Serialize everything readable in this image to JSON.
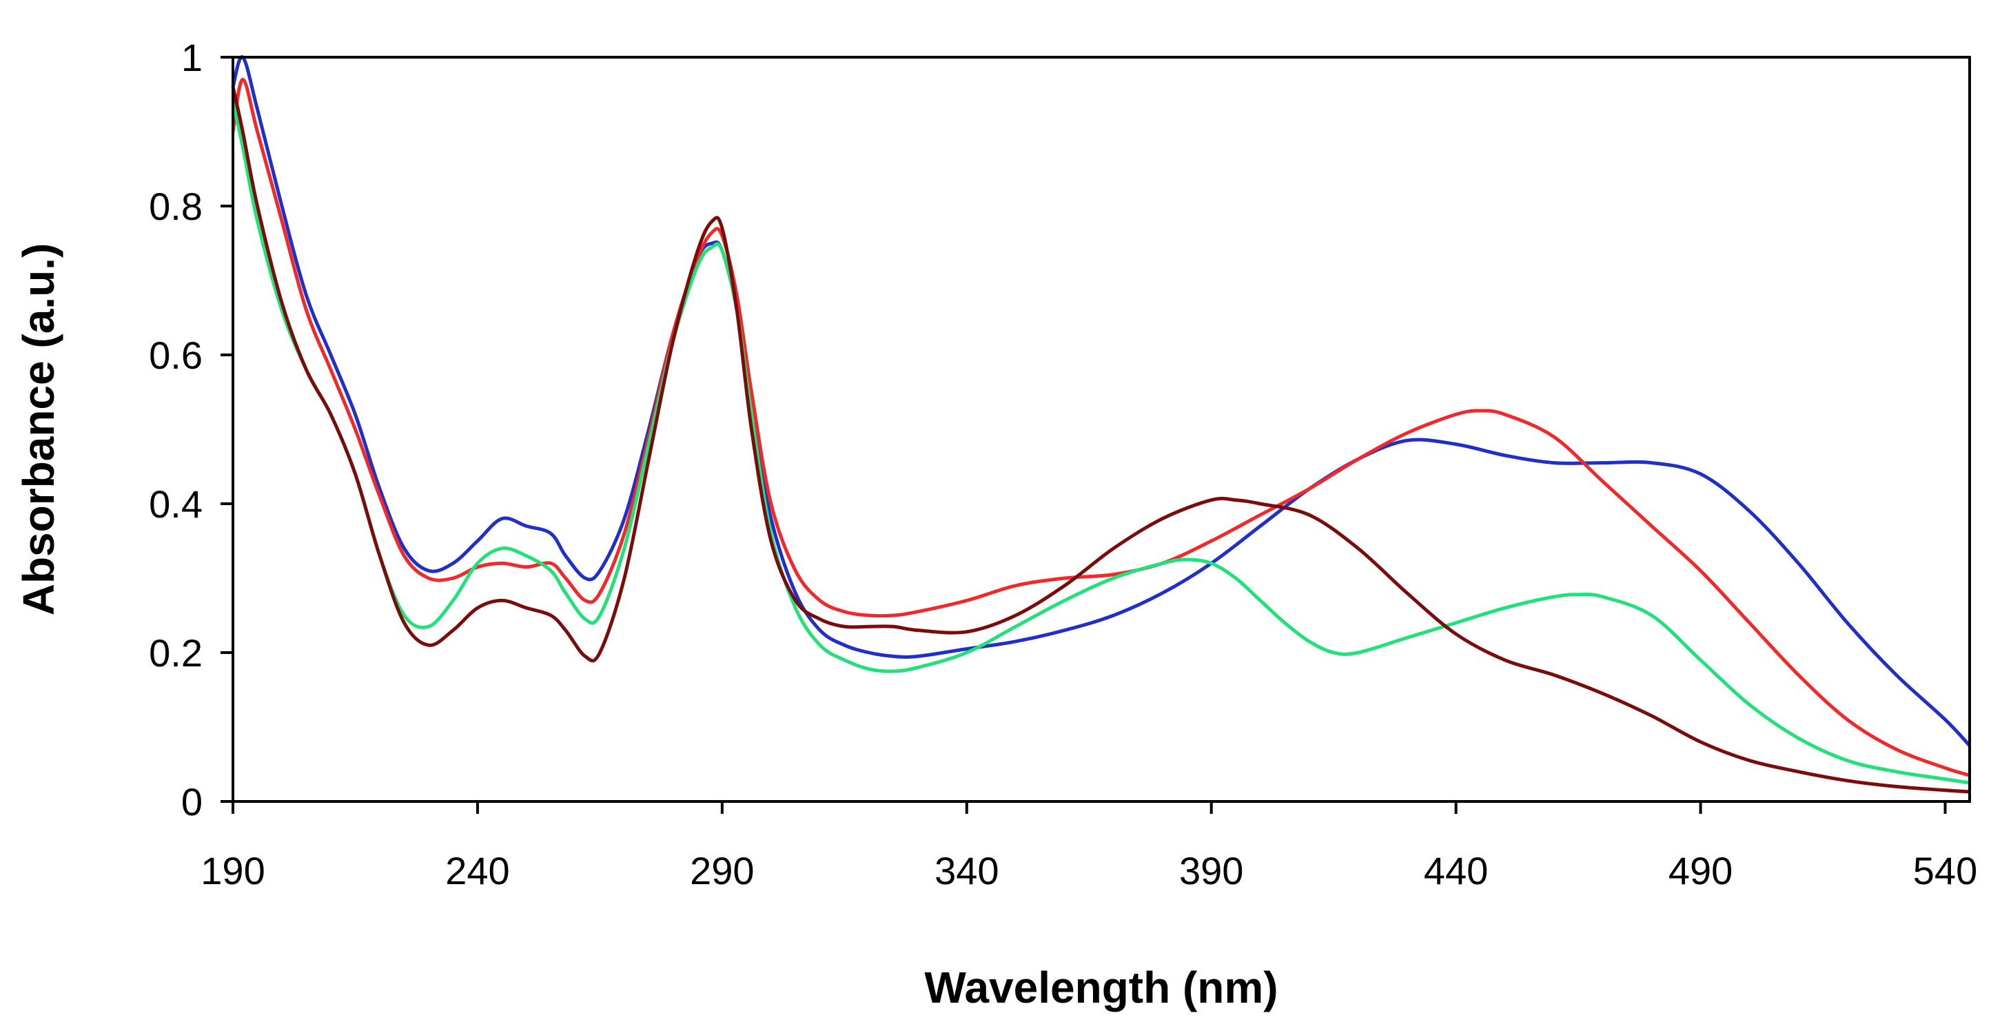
{
  "chart_data": {
    "type": "line",
    "title": "",
    "xlabel": "Wavelength (nm)",
    "ylabel": "Absorbance (a.u.)",
    "xlim": [
      190,
      545
    ],
    "ylim": [
      0,
      1
    ],
    "xticks": [
      190,
      240,
      290,
      340,
      390,
      440,
      490,
      540
    ],
    "yticks": [
      0,
      0.2,
      0.4,
      0.6,
      0.8,
      1
    ],
    "ytick_labels": [
      "0",
      "0.2",
      "0.4",
      "0.6",
      "0.8",
      "1"
    ],
    "grid": false,
    "legend": "none",
    "series": [
      {
        "name": "blue",
        "color": "#1f2fc8",
        "x": [
          190,
          192,
          195,
          200,
          205,
          210,
          215,
          220,
          225,
          230,
          235,
          240,
          245,
          250,
          255,
          258,
          262,
          265,
          270,
          275,
          280,
          285,
          288,
          290,
          293,
          296,
          300,
          305,
          310,
          315,
          320,
          325,
          330,
          340,
          350,
          360,
          370,
          380,
          390,
          400,
          410,
          420,
          430,
          440,
          450,
          460,
          470,
          480,
          490,
          500,
          510,
          520,
          530,
          540,
          545
        ],
        "y": [
          0.96,
          1.0,
          0.93,
          0.8,
          0.68,
          0.6,
          0.52,
          0.42,
          0.34,
          0.31,
          0.32,
          0.35,
          0.38,
          0.37,
          0.36,
          0.33,
          0.3,
          0.31,
          0.38,
          0.5,
          0.63,
          0.73,
          0.75,
          0.74,
          0.66,
          0.52,
          0.38,
          0.28,
          0.23,
          0.21,
          0.2,
          0.195,
          0.195,
          0.205,
          0.215,
          0.23,
          0.25,
          0.28,
          0.32,
          0.37,
          0.42,
          0.46,
          0.485,
          0.48,
          0.465,
          0.455,
          0.455,
          0.455,
          0.44,
          0.39,
          0.32,
          0.24,
          0.17,
          0.11,
          0.075
        ]
      },
      {
        "name": "red",
        "color": "#f02a2a",
        "x": [
          190,
          192,
          195,
          200,
          205,
          210,
          215,
          220,
          225,
          230,
          235,
          240,
          245,
          250,
          255,
          258,
          262,
          265,
          270,
          275,
          280,
          285,
          288,
          290,
          293,
          296,
          300,
          305,
          310,
          315,
          320,
          325,
          330,
          340,
          350,
          360,
          370,
          380,
          390,
          400,
          410,
          420,
          430,
          440,
          445,
          450,
          460,
          470,
          480,
          490,
          500,
          510,
          520,
          530,
          540,
          545
        ],
        "y": [
          0.9,
          0.97,
          0.9,
          0.78,
          0.66,
          0.58,
          0.5,
          0.41,
          0.33,
          0.3,
          0.3,
          0.315,
          0.32,
          0.315,
          0.32,
          0.3,
          0.27,
          0.28,
          0.36,
          0.49,
          0.63,
          0.73,
          0.765,
          0.76,
          0.68,
          0.55,
          0.4,
          0.31,
          0.27,
          0.255,
          0.25,
          0.25,
          0.255,
          0.27,
          0.29,
          0.3,
          0.305,
          0.32,
          0.35,
          0.385,
          0.42,
          0.46,
          0.495,
          0.52,
          0.525,
          0.52,
          0.49,
          0.43,
          0.37,
          0.31,
          0.24,
          0.17,
          0.11,
          0.07,
          0.045,
          0.035
        ]
      },
      {
        "name": "green",
        "color": "#22e07a",
        "x": [
          190,
          192,
          195,
          200,
          205,
          210,
          215,
          220,
          225,
          230,
          235,
          240,
          245,
          250,
          255,
          258,
          262,
          265,
          270,
          275,
          280,
          285,
          288,
          290,
          293,
          296,
          300,
          305,
          310,
          315,
          320,
          325,
          330,
          340,
          350,
          360,
          370,
          380,
          385,
          390,
          395,
          400,
          405,
          410,
          415,
          420,
          430,
          440,
          450,
          460,
          465,
          470,
          480,
          490,
          500,
          510,
          520,
          530,
          540,
          545
        ],
        "y": [
          0.94,
          0.88,
          0.78,
          0.66,
          0.58,
          0.52,
          0.44,
          0.33,
          0.25,
          0.235,
          0.27,
          0.32,
          0.34,
          0.33,
          0.31,
          0.28,
          0.245,
          0.25,
          0.34,
          0.48,
          0.62,
          0.72,
          0.745,
          0.74,
          0.66,
          0.52,
          0.36,
          0.26,
          0.21,
          0.19,
          0.178,
          0.175,
          0.18,
          0.2,
          0.235,
          0.27,
          0.3,
          0.32,
          0.325,
          0.32,
          0.3,
          0.27,
          0.24,
          0.215,
          0.2,
          0.2,
          0.22,
          0.24,
          0.26,
          0.275,
          0.278,
          0.275,
          0.25,
          0.19,
          0.13,
          0.085,
          0.055,
          0.04,
          0.03,
          0.025
        ]
      },
      {
        "name": "dark red",
        "color": "#7a0c0c",
        "x": [
          190,
          192,
          195,
          200,
          205,
          210,
          215,
          220,
          225,
          230,
          235,
          240,
          245,
          250,
          255,
          258,
          262,
          265,
          270,
          275,
          280,
          285,
          288,
          290,
          293,
          296,
          300,
          305,
          310,
          315,
          320,
          325,
          330,
          340,
          350,
          360,
          370,
          380,
          390,
          395,
          400,
          410,
          420,
          430,
          440,
          450,
          460,
          470,
          480,
          490,
          500,
          510,
          520,
          530,
          540,
          545
        ],
        "y": [
          0.96,
          0.9,
          0.8,
          0.67,
          0.58,
          0.52,
          0.44,
          0.33,
          0.24,
          0.21,
          0.23,
          0.26,
          0.27,
          0.26,
          0.25,
          0.23,
          0.195,
          0.2,
          0.3,
          0.46,
          0.62,
          0.74,
          0.78,
          0.77,
          0.66,
          0.5,
          0.35,
          0.27,
          0.245,
          0.235,
          0.235,
          0.235,
          0.23,
          0.228,
          0.25,
          0.29,
          0.34,
          0.38,
          0.405,
          0.405,
          0.4,
          0.385,
          0.34,
          0.28,
          0.225,
          0.19,
          0.17,
          0.145,
          0.115,
          0.08,
          0.055,
          0.04,
          0.028,
          0.02,
          0.015,
          0.013
        ]
      }
    ]
  }
}
